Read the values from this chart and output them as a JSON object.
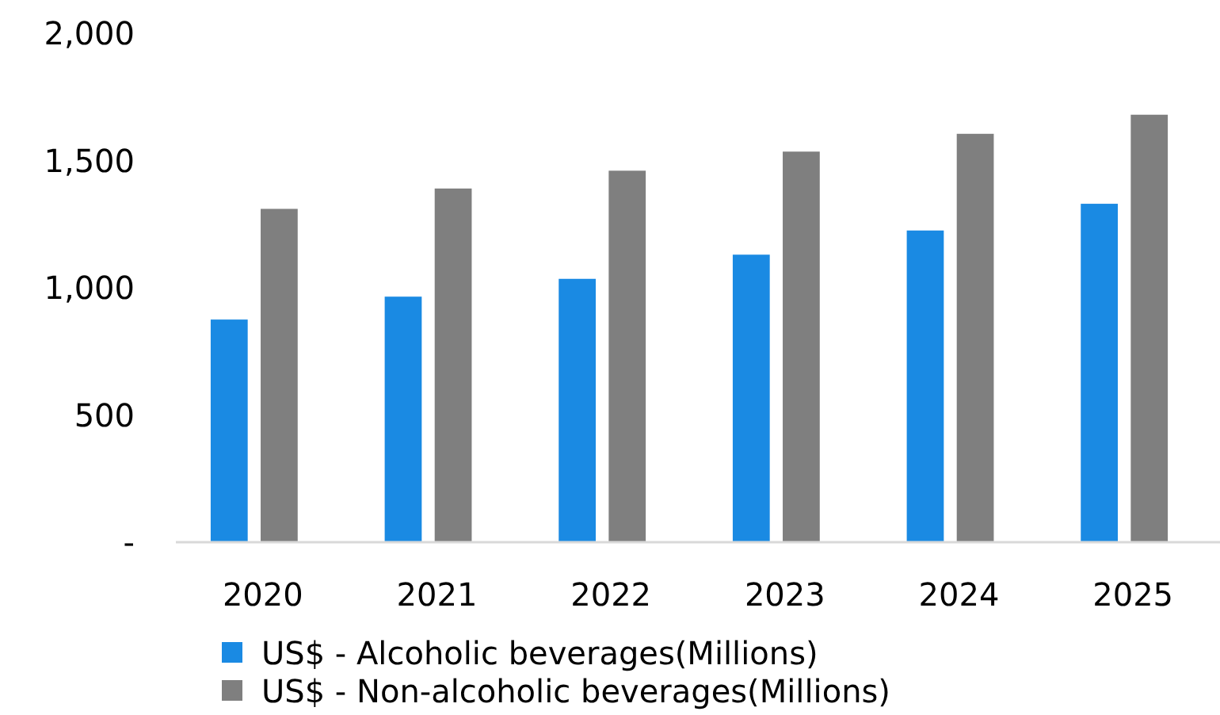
{
  "chart_data": {
    "type": "bar",
    "categories": [
      "2020",
      "2021",
      "2022",
      "2023",
      "2024",
      "2025"
    ],
    "series": [
      {
        "name": "US$ - Alcoholic beverages(Millions)",
        "color": "#1a8ae3",
        "values": [
          875,
          965,
          1035,
          1130,
          1225,
          1330
        ]
      },
      {
        "name": "US$ - Non-alcoholic beverages(Millions)",
        "color": "#7f7f7f",
        "values": [
          1310,
          1390,
          1460,
          1535,
          1605,
          1680
        ]
      }
    ],
    "ylim": [
      0,
      2000
    ],
    "yticks": [
      {
        "value": 0,
        "label": "-"
      },
      500,
      {
        "value": 1000,
        "label": "1,000"
      },
      {
        "value": 1500,
        "label": "1,500"
      },
      {
        "value": 2000,
        "label": "2,000"
      }
    ],
    "grid": false,
    "legend": "bottom"
  }
}
